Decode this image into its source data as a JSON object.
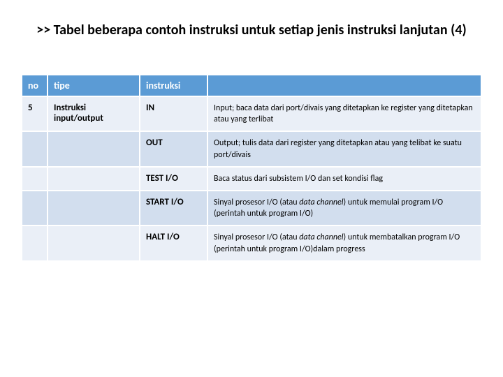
{
  "title": ">> Tabel beberapa contoh instruksi untuk setiap jenis instruksi lanjutan (4)",
  "table": {
    "headers": {
      "no": "no",
      "tipe": "tipe",
      "instruksi": "instruksi",
      "desc": ""
    },
    "rows": [
      {
        "no": "5",
        "tipe": "Instruksi input/output",
        "instr": "IN",
        "desc": "Input; baca data dari port/divais yang ditetapkan ke register yang ditetapkan atau yang terlibat"
      },
      {
        "no": "",
        "tipe": "",
        "instr": "OUT",
        "desc": "Output; tulis data dari register yang ditetapkan atau yang telibat ke suatu port/divais"
      },
      {
        "no": "",
        "tipe": "",
        "instr": "TEST I/O",
        "desc": "Baca status dari subsistem I/O dan set kondisi flag"
      },
      {
        "no": "",
        "tipe": "",
        "instr": "START I/O",
        "desc_pre": "Sinyal prosesor I/O (atau ",
        "desc_italic": "data channel",
        "desc_post": ") untuk memulai program I/O (perintah untuk program I/O)"
      },
      {
        "no": "",
        "tipe": "",
        "instr": "HALT I/O",
        "desc_pre": "Sinyal prosesor I/O (atau ",
        "desc_italic": "data channel",
        "desc_post": ") untuk membatalkan program I/O (perintah untuk program I/O)dalam progress"
      }
    ]
  },
  "colors": {
    "header_bg": "#5b9bd5",
    "row_odd": "#eaeff7",
    "row_even": "#d2deee",
    "text": "#000000"
  }
}
